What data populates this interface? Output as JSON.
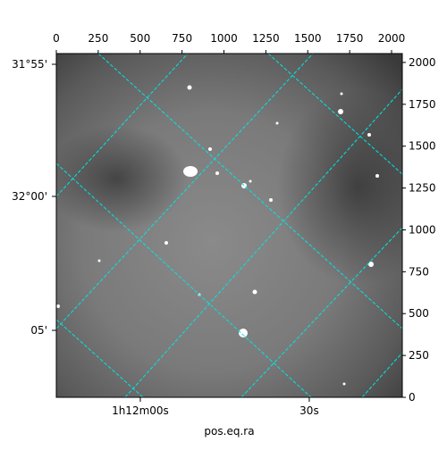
{
  "chart_data": {
    "type": "image",
    "xlabel": "pos.eq.ra",
    "xlim": [
      0,
      2064
    ],
    "ylim": [
      0,
      2053
    ],
    "xticks": [
      0,
      250,
      500,
      750,
      1000,
      1250,
      1500,
      1750,
      2000
    ],
    "yticks": [
      0,
      250,
      500,
      750,
      1000,
      1250,
      1500,
      1750,
      2000
    ],
    "ra_ticks": [
      {
        "value": 501,
        "label": "1h12m00s"
      },
      {
        "value": 1509,
        "label": "30s"
      }
    ],
    "dec_ticks": [
      {
        "value": 1989,
        "label": "31°55'"
      },
      {
        "value": 1200,
        "label": "32°00'"
      },
      {
        "value": 400,
        "label": "05'"
      }
    ],
    "grid_color": "#00e5e5"
  }
}
